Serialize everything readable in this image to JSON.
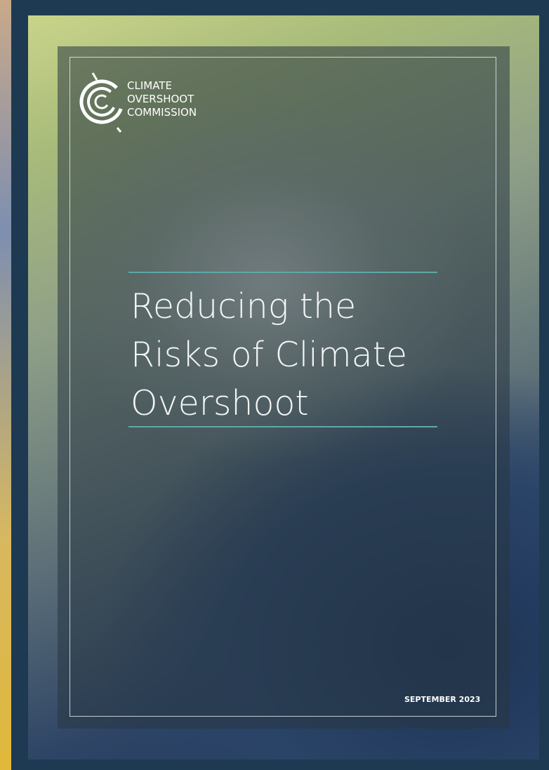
{
  "logo": {
    "lines": [
      "CLIMATE",
      "OVERSHOOT",
      "COMMISSION"
    ]
  },
  "title": {
    "lines": [
      "Reducing the",
      "Risks of Climate",
      "Overshoot"
    ]
  },
  "date": "SEPTEMBER 2023"
}
